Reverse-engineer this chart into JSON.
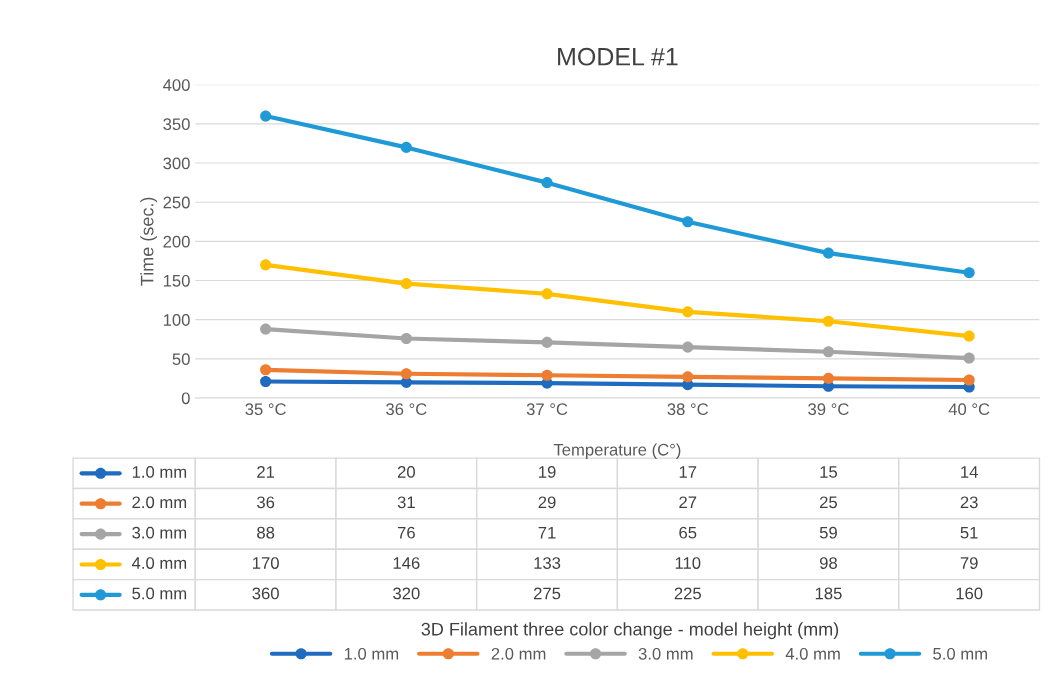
{
  "chart_data": {
    "type": "line",
    "title": "MODEL #1",
    "xlabel": "Temperature (C°)",
    "ylabel": "Time (sec.)",
    "legend_title": "3D Filament three color change - model height (mm)",
    "categories": [
      "35 °C",
      "36 °C",
      "37 °C",
      "38 °C",
      "39 °C",
      "40 °C"
    ],
    "series": [
      {
        "name": "1.0 mm",
        "color": "#1f6bc0",
        "values": [
          21,
          20,
          19,
          17,
          15,
          14
        ]
      },
      {
        "name": "2.0 mm",
        "color": "#ed7d31",
        "values": [
          36,
          31,
          29,
          27,
          25,
          23
        ]
      },
      {
        "name": "3.0 mm",
        "color": "#a5a5a5",
        "values": [
          88,
          76,
          71,
          65,
          59,
          51
        ]
      },
      {
        "name": "4.0 mm",
        "color": "#ffc000",
        "values": [
          170,
          146,
          133,
          110,
          98,
          79
        ]
      },
      {
        "name": "5.0 mm",
        "color": "#1f9ad6",
        "values": [
          360,
          320,
          275,
          225,
          185,
          160
        ]
      }
    ],
    "ylim": [
      0,
      400
    ],
    "yticks": [
      0,
      50,
      100,
      150,
      200,
      250,
      300,
      350,
      400
    ],
    "grid": "y",
    "legend": "bottom",
    "marker": "circle",
    "line_style": "solid",
    "data_labels": true
  }
}
